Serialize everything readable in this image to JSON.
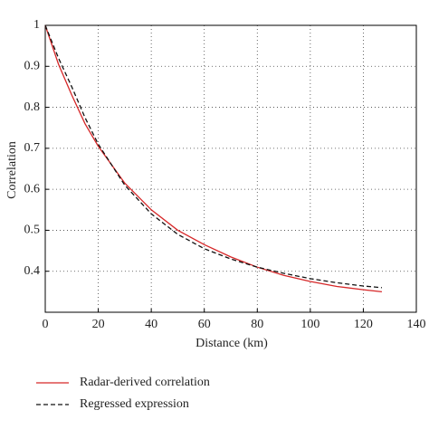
{
  "chart_data": {
    "type": "line",
    "x_label": "Distance (km)",
    "y_label": "Correlation",
    "x": [
      0,
      5,
      10,
      15,
      20,
      30,
      40,
      50,
      60,
      70,
      80,
      90,
      100,
      110,
      120,
      127
    ],
    "series": [
      {
        "name": "Radar-derived correlation",
        "color": "#d62728",
        "dash": false,
        "values": [
          1.0,
          0.905,
          0.83,
          0.76,
          0.705,
          0.615,
          0.55,
          0.5,
          0.465,
          0.435,
          0.41,
          0.39,
          0.375,
          0.363,
          0.355,
          0.35
        ]
      },
      {
        "name": "Regressed expression",
        "color": "#111111",
        "dash": true,
        "values": [
          1.0,
          0.92,
          0.85,
          0.775,
          0.71,
          0.61,
          0.54,
          0.49,
          0.455,
          0.43,
          0.41,
          0.395,
          0.382,
          0.372,
          0.364,
          0.36
        ]
      }
    ],
    "xlim": [
      0,
      140
    ],
    "xticks": [
      0,
      20,
      40,
      60,
      80,
      100,
      120,
      140
    ],
    "ylim": [
      0.3,
      1
    ],
    "yticks": [
      0.4,
      0.5,
      0.6,
      0.7,
      0.8,
      0.9,
      1
    ],
    "grid": true,
    "legend": "bottom"
  }
}
